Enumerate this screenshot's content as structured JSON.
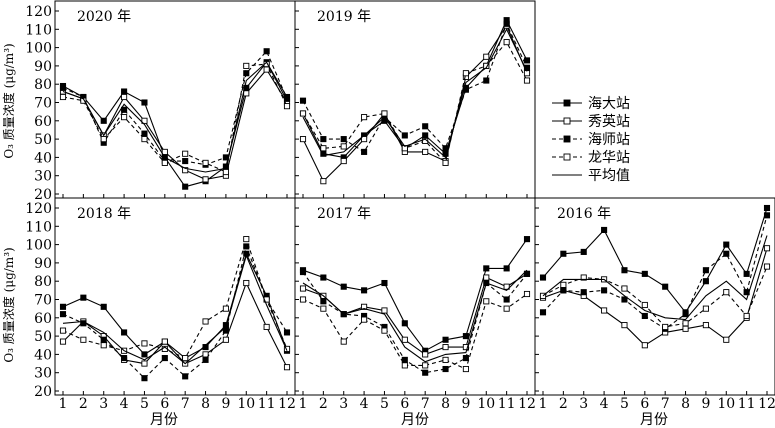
{
  "figure": {
    "ylabel": "O₃ 质量浓度 (μg/m³)",
    "xlabel": "月份"
  },
  "legend": [
    {
      "name": "海大站",
      "line": "solid",
      "marker": "filled-square"
    },
    {
      "name": "秀英站",
      "line": "solid",
      "marker": "open-square"
    },
    {
      "name": "海师站",
      "line": "dashed",
      "marker": "filled-square"
    },
    {
      "name": "龙华站",
      "line": "dashed",
      "marker": "open-square"
    },
    {
      "name": "平均值",
      "line": "solid",
      "marker": "none"
    }
  ],
  "chart_data": [
    {
      "type": "line",
      "title": "2020 年",
      "x": [
        1,
        2,
        3,
        4,
        5,
        6,
        7,
        8,
        9,
        10,
        11,
        12
      ],
      "ylim": [
        20,
        120
      ],
      "yticks": [
        20,
        30,
        40,
        50,
        60,
        70,
        80,
        90,
        100,
        110,
        120
      ],
      "series": [
        {
          "name": "海大站",
          "values": [
            79,
            73,
            60,
            76,
            70,
            40,
            24,
            27,
            35,
            78,
            92,
            73
          ]
        },
        {
          "name": "秀英站",
          "values": [
            76,
            72,
            52,
            73,
            60,
            43,
            33,
            28,
            30,
            75,
            88,
            70
          ]
        },
        {
          "name": "海师站",
          "values": [
            78,
            73,
            48,
            66,
            53,
            38,
            38,
            36,
            40,
            86,
            98,
            72
          ]
        },
        {
          "name": "龙华站",
          "values": [
            73,
            71,
            50,
            62,
            50,
            37,
            42,
            37,
            32,
            90,
            91,
            68
          ]
        },
        {
          "name": "平均值",
          "values": [
            76,
            72,
            52,
            69,
            58,
            40,
            34,
            32,
            34,
            82,
            92,
            71
          ]
        }
      ]
    },
    {
      "type": "line",
      "title": "2019 年",
      "x": [
        1,
        2,
        3,
        4,
        5,
        6,
        7,
        8,
        9,
        10,
        11,
        12
      ],
      "ylim": [
        20,
        120
      ],
      "yticks": [
        20,
        30,
        40,
        50,
        60,
        70,
        80,
        90,
        100,
        110,
        120
      ],
      "series": [
        {
          "name": "海大站",
          "values": [
            64,
            42,
            40,
            52,
            60,
            45,
            52,
            42,
            78,
            90,
            115,
            93
          ]
        },
        {
          "name": "秀英站",
          "values": [
            50,
            27,
            38,
            50,
            64,
            43,
            43,
            38,
            84,
            95,
            112,
            86
          ]
        },
        {
          "name": "海师站",
          "values": [
            71,
            50,
            50,
            43,
            62,
            52,
            57,
            45,
            77,
            82,
            113,
            89
          ]
        },
        {
          "name": "龙华站",
          "values": [
            64,
            45,
            46,
            62,
            64,
            45,
            49,
            37,
            86,
            90,
            103,
            82
          ]
        },
        {
          "name": "平均值",
          "values": [
            62,
            41,
            43,
            52,
            62,
            46,
            50,
            40,
            81,
            89,
            110,
            87
          ]
        }
      ]
    },
    {
      "type": "line",
      "title": "2018 年",
      "x": [
        1,
        2,
        3,
        4,
        5,
        6,
        7,
        8,
        9,
        10,
        11,
        12
      ],
      "ylim": [
        20,
        120
      ],
      "yticks": [
        20,
        30,
        40,
        50,
        60,
        70,
        80,
        90,
        100,
        110,
        120
      ],
      "series": [
        {
          "name": "海大站",
          "values": [
            66,
            71,
            66,
            52,
            40,
            47,
            38,
            44,
            56,
            95,
            72,
            42
          ]
        },
        {
          "name": "秀英站",
          "values": [
            47,
            58,
            50,
            37,
            35,
            47,
            35,
            40,
            48,
            79,
            55,
            33
          ]
        },
        {
          "name": "海师站",
          "values": [
            62,
            57,
            48,
            38,
            27,
            38,
            28,
            37,
            53,
            99,
            70,
            52
          ]
        },
        {
          "name": "龙华站",
          "values": [
            53,
            48,
            45,
            42,
            46,
            43,
            38,
            58,
            65,
            103,
            70,
            43
          ]
        },
        {
          "name": "平均值",
          "values": [
            57,
            58,
            52,
            42,
            37,
            44,
            35,
            45,
            55,
            94,
            67,
            42
          ]
        }
      ]
    },
    {
      "type": "line",
      "title": "2017 年",
      "x": [
        1,
        2,
        3,
        4,
        5,
        6,
        7,
        8,
        9,
        10,
        11,
        12
      ],
      "ylim": [
        20,
        120
      ],
      "yticks": [
        20,
        30,
        40,
        50,
        60,
        70,
        80,
        90,
        100,
        110,
        120
      ],
      "series": [
        {
          "name": "海大站",
          "values": [
            86,
            82,
            77,
            75,
            79,
            57,
            42,
            48,
            50,
            87,
            87,
            103
          ]
        },
        {
          "name": "秀英站",
          "values": [
            76,
            72,
            62,
            66,
            64,
            48,
            40,
            44,
            44,
            82,
            77,
            84
          ]
        },
        {
          "name": "海师站",
          "values": [
            85,
            69,
            62,
            61,
            55,
            37,
            30,
            32,
            38,
            79,
            70,
            84
          ]
        },
        {
          "name": "龙华站",
          "values": [
            70,
            65,
            47,
            59,
            53,
            34,
            34,
            37,
            32,
            69,
            65,
            73
          ]
        },
        {
          "name": "平均值",
          "values": [
            79,
            72,
            62,
            65,
            62,
            44,
            36,
            40,
            41,
            79,
            75,
            86
          ]
        }
      ]
    },
    {
      "type": "line",
      "title": "2016 年",
      "x": [
        1,
        2,
        3,
        4,
        5,
        6,
        7,
        8,
        9,
        10,
        11,
        12
      ],
      "ylim": [
        20,
        120
      ],
      "yticks": [
        20,
        30,
        40,
        50,
        60,
        70,
        80,
        90,
        100,
        110,
        120
      ],
      "series": [
        {
          "name": "海大站",
          "values": [
            82,
            95,
            96,
            108,
            86,
            84,
            77,
            63,
            80,
            100,
            84,
            120
          ]
        },
        {
          "name": "秀英站",
          "values": [
            71,
            75,
            72,
            64,
            56,
            45,
            52,
            54,
            56,
            48,
            60,
            98
          ]
        },
        {
          "name": "海师站",
          "values": [
            63,
            75,
            74,
            75,
            70,
            61,
            54,
            62,
            86,
            95,
            74,
            116
          ]
        },
        {
          "name": "龙华站",
          "values": [
            72,
            78,
            82,
            81,
            76,
            67,
            55,
            57,
            65,
            74,
            61,
            88
          ]
        },
        {
          "name": "平均值",
          "values": [
            72,
            81,
            81,
            81,
            72,
            64,
            60,
            59,
            72,
            80,
            70,
            105
          ]
        }
      ]
    }
  ]
}
